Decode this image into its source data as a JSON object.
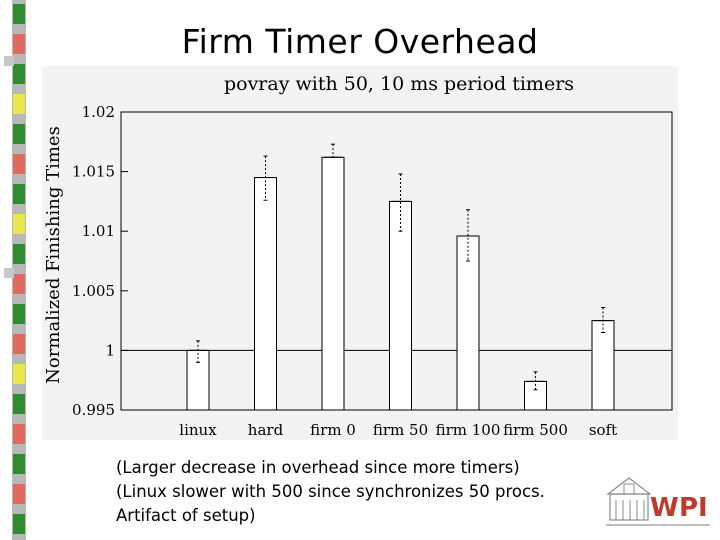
{
  "slide": {
    "title": "Firm Timer Overhead",
    "captions": [
      "(Larger decrease in overhead since more timers)",
      "(Linux slower with 500 since synchronizes 50 procs.",
      "Artifact of setup)"
    ],
    "logo_text": "WPI"
  },
  "chart_data": {
    "type": "bar",
    "title": "povray with 50, 10 ms period timers",
    "xlabel": "",
    "ylabel": "Normalized Finishing Times",
    "categories": [
      "linux",
      "hard",
      "firm 0",
      "firm 50",
      "firm 100",
      "firm 500",
      "soft"
    ],
    "values": [
      1.0,
      1.0145,
      1.0162,
      1.0125,
      1.0096,
      0.9974,
      1.0025
    ],
    "error_low": [
      0.999,
      1.0126,
      1.0162,
      1.01,
      1.0075,
      0.9967,
      1.0015
    ],
    "error_high": [
      1.0008,
      1.0163,
      1.0173,
      1.0148,
      1.0118,
      0.9982,
      1.0036
    ],
    "ylim": [
      0.995,
      1.02
    ],
    "yticks": [
      "0.995",
      "1",
      "1.005",
      "1.01",
      "1.015",
      "1.02"
    ],
    "reference_line": 1.0,
    "bar_fill": "#ffffff",
    "bar_stroke": "#000000",
    "plot_background": "#f3f3f3"
  }
}
